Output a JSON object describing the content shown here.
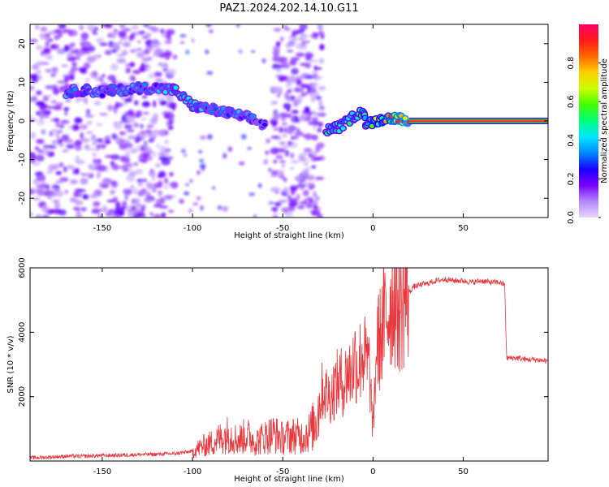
{
  "figure_title": "PAZ1.2024.202.14.10.G11",
  "chart_data": [
    {
      "type": "heatmap",
      "xlabel": "Height of straight line (km)",
      "ylabel": "Frequency (Hz)",
      "xlim": [
        -190,
        97
      ],
      "ylim": [
        -25,
        25
      ],
      "x_ticks": [
        -150,
        -100,
        -50,
        0,
        50
      ],
      "y_ticks": [
        -20,
        -10,
        0,
        10,
        20
      ],
      "colorbar": {
        "label": "Normalized spectral amplitude",
        "range": [
          0,
          1
        ],
        "ticks": [
          "0.0",
          "0.2",
          "0.4",
          "0.6",
          "0.8"
        ],
        "colormap": [
          "#e8d5ff",
          "#b388ff",
          "#7a00ff",
          "#1a00ff",
          "#0088ff",
          "#00e5ff",
          "#00ff80",
          "#40ff00",
          "#c8ff00",
          "#ffd000",
          "#ff6a00",
          "#ff1a1a",
          "#ff0066"
        ]
      },
      "noise_regions": [
        {
          "x": [
            -190,
            -110
          ],
          "y": [
            -25,
            25
          ],
          "amplitude": 0.12
        },
        {
          "x": [
            -55,
            -28
          ],
          "y": [
            -25,
            25
          ],
          "amplitude": 0.12
        }
      ],
      "signal_track": [
        {
          "x": -170,
          "y": 7.5,
          "amplitude": 0.3
        },
        {
          "x": -160,
          "y": 8.0,
          "amplitude": 0.35
        },
        {
          "x": -150,
          "y": 7.5,
          "amplitude": 0.3
        },
        {
          "x": -140,
          "y": 8.0,
          "amplitude": 0.32
        },
        {
          "x": -130,
          "y": 8.5,
          "amplitude": 0.3
        },
        {
          "x": -120,
          "y": 8.5,
          "amplitude": 0.3
        },
        {
          "x": -110,
          "y": 8.0,
          "amplitude": 0.35
        },
        {
          "x": -100,
          "y": 4.0,
          "amplitude": 0.35
        },
        {
          "x": -90,
          "y": 3.0,
          "amplitude": 0.3
        },
        {
          "x": -80,
          "y": 2.0,
          "amplitude": 0.32
        },
        {
          "x": -70,
          "y": 1.0,
          "amplitude": 0.3
        },
        {
          "x": -60,
          "y": -1.0,
          "amplitude": 0.25
        },
        {
          "x": -26,
          "y": -2.5,
          "amplitude": 0.4
        },
        {
          "x": -18,
          "y": -1.5,
          "amplitude": 0.4
        },
        {
          "x": -10,
          "y": 1.5,
          "amplitude": 0.4
        },
        {
          "x": -5,
          "y": 2.5,
          "amplitude": 0.45
        },
        {
          "x": -4,
          "y": -1.0,
          "amplitude": 0.45
        },
        {
          "x": 5,
          "y": 0.5,
          "amplitude": 0.55
        },
        {
          "x": 12,
          "y": 0.8,
          "amplitude": 0.7
        },
        {
          "x": 20,
          "y": 0.3,
          "amplitude": 0.8
        }
      ],
      "carrier": {
        "x": [
          20,
          97
        ],
        "y": 0,
        "amplitude": 0.95
      }
    },
    {
      "type": "line",
      "xlabel": "Height of straight line (km)",
      "ylabel": "SNR (10 * v/v)",
      "xlim": [
        -190,
        97
      ],
      "ylim": [
        0,
        6000
      ],
      "x_ticks": [
        -150,
        -100,
        -50,
        0,
        50
      ],
      "y_ticks": [
        2000,
        4000,
        6000
      ],
      "color": "#e8383d",
      "series": [
        {
          "x": [
            -190,
            -180,
            -170,
            -160,
            -150,
            -140,
            -130,
            -120,
            -110,
            -100,
            -95,
            -90,
            -85,
            -80,
            -75,
            -70,
            -65,
            -60,
            -55,
            -50,
            -45,
            -40,
            -35,
            -32,
            -30,
            -28,
            -26,
            -24,
            -22,
            -20,
            -18,
            -16,
            -14,
            -12,
            -10,
            -8,
            -6,
            -4,
            -2,
            0,
            2,
            4,
            6,
            8,
            10,
            12,
            14,
            16,
            18,
            20,
            22,
            25,
            28,
            30,
            32,
            35,
            40,
            45,
            50,
            55,
            60,
            65,
            70,
            72,
            73,
            74,
            75,
            80,
            85,
            90,
            97
          ],
          "y": [
            100,
            120,
            150,
            150,
            170,
            180,
            200,
            210,
            230,
            300,
            450,
            550,
            700,
            850,
            650,
            800,
            600,
            750,
            850,
            700,
            800,
            750,
            900,
            1200,
            1700,
            2200,
            2100,
            2000,
            2200,
            2400,
            2500,
            2400,
            2800,
            2700,
            3200,
            2900,
            3400,
            3100,
            2900,
            900,
            3600,
            3800,
            4300,
            4600,
            5000,
            5100,
            4800,
            4900,
            5200,
            5200,
            5400,
            5450,
            5500,
            5500,
            5550,
            5600,
            5650,
            5600,
            5600,
            5550,
            5600,
            5550,
            5550,
            5500,
            5450,
            3200,
            3200,
            3200,
            3150,
            3150,
            3100
          ]
        }
      ]
    }
  ]
}
